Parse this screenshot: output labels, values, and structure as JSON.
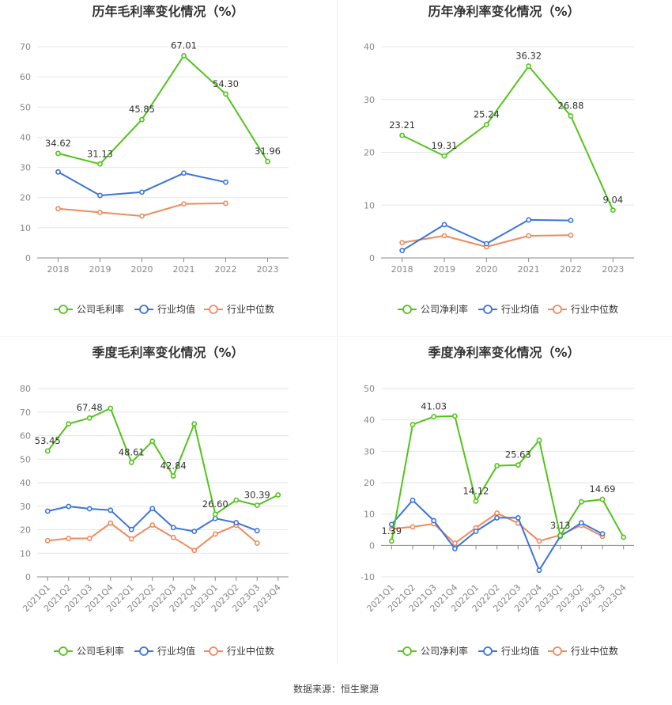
{
  "colors": {
    "company": "#52c41a",
    "avg": "#3b74db",
    "median": "#f08a5d"
  },
  "legend": [
    "公司毛利率",
    "行业均值",
    "行业中位数"
  ],
  "source": "数据来源：恒生聚源",
  "chart_data": [
    {
      "type": "line",
      "title": "历年毛利率变化情况（%）",
      "categories": [
        "2018",
        "2019",
        "2020",
        "2021",
        "2022",
        "2023"
      ],
      "ylim": [
        0,
        70
      ],
      "yticks": [
        0,
        10,
        20,
        30,
        40,
        50,
        60,
        70
      ],
      "legend": [
        "公司毛利率",
        "行业均值",
        "行业中位数"
      ],
      "series": [
        {
          "name": "公司毛利率",
          "values": [
            34.62,
            31.13,
            45.85,
            67.01,
            54.3,
            31.96
          ],
          "labels": [
            "34.62",
            "31.13",
            "45.85",
            "67.01",
            "54.30",
            "31.96"
          ]
        },
        {
          "name": "行业均值",
          "values": [
            28.5,
            20.7,
            21.8,
            28.1,
            25.1,
            null
          ]
        },
        {
          "name": "行业中位数",
          "values": [
            16.3,
            15.1,
            13.9,
            17.9,
            18.1,
            null
          ]
        }
      ]
    },
    {
      "type": "line",
      "title": "历年净利率变化情况（%）",
      "categories": [
        "2018",
        "2019",
        "2020",
        "2021",
        "2022",
        "2023"
      ],
      "ylim": [
        0,
        40
      ],
      "yticks": [
        0,
        10,
        20,
        30,
        40
      ],
      "legend": [
        "公司净利率",
        "行业均值",
        "行业中位数"
      ],
      "series": [
        {
          "name": "公司净利率",
          "values": [
            23.21,
            19.31,
            25.24,
            36.32,
            26.88,
            9.04
          ],
          "labels": [
            "23.21",
            "19.31",
            "25.24",
            "36.32",
            "26.88",
            "9.04"
          ]
        },
        {
          "name": "行业均值",
          "values": [
            1.4,
            6.3,
            2.7,
            7.2,
            7.1,
            null
          ]
        },
        {
          "name": "行业中位数",
          "values": [
            2.9,
            4.2,
            2.1,
            4.2,
            4.3,
            null
          ]
        }
      ]
    },
    {
      "type": "line",
      "title": "季度毛利率变化情况（%）",
      "categories": [
        "2021Q1",
        "2021Q2",
        "2021Q3",
        "2021Q4",
        "2022Q1",
        "2022Q2",
        "2022Q3",
        "2022Q4",
        "2023Q1",
        "2023Q2",
        "2023Q3",
        "2023Q4"
      ],
      "ylim": [
        0,
        80
      ],
      "yticks": [
        0,
        10,
        20,
        30,
        40,
        50,
        60,
        70,
        80
      ],
      "legend": [
        "公司毛利率",
        "行业均值",
        "行业中位数"
      ],
      "series": [
        {
          "name": "公司毛利率",
          "values": [
            53.45,
            65.0,
            67.48,
            71.6,
            48.61,
            57.6,
            42.84,
            65.0,
            26.6,
            32.6,
            30.39,
            34.8
          ],
          "labels": [
            "53.45",
            "",
            "67.48",
            "",
            "48.61",
            "",
            "42.84",
            "",
            "26.60",
            "",
            "30.39",
            ""
          ]
        },
        {
          "name": "行业均值",
          "values": [
            27.9,
            29.9,
            28.9,
            28.3,
            20.1,
            29.0,
            20.9,
            19.3,
            24.8,
            23.0,
            19.6,
            null
          ]
        },
        {
          "name": "行业中位数",
          "values": [
            15.4,
            16.3,
            16.3,
            22.8,
            16.1,
            22.0,
            16.7,
            11.2,
            18.2,
            21.9,
            14.3,
            null
          ]
        }
      ]
    },
    {
      "type": "line",
      "title": "季度净利率变化情况（%）",
      "categories": [
        "2021Q1",
        "2021Q2",
        "2021Q3",
        "2021Q4",
        "2022Q1",
        "2022Q2",
        "2022Q3",
        "2022Q4",
        "2023Q1",
        "2023Q2",
        "2023Q3",
        "2023Q4"
      ],
      "ylim": [
        -10,
        50
      ],
      "yticks": [
        -10,
        0,
        10,
        20,
        30,
        40,
        50
      ],
      "legend": [
        "公司净利率",
        "行业均值",
        "行业中位数"
      ],
      "series": [
        {
          "name": "公司净利率",
          "values": [
            1.39,
            38.5,
            41.03,
            41.2,
            14.12,
            25.4,
            25.63,
            33.5,
            3.13,
            13.9,
            14.69,
            2.6
          ],
          "labels": [
            "1.39",
            "",
            "41.03",
            "",
            "14.12",
            "",
            "25.63",
            "",
            "3.13",
            "",
            "14.69",
            ""
          ]
        },
        {
          "name": "行业均值",
          "values": [
            6.7,
            14.4,
            7.9,
            -1.0,
            4.5,
            8.8,
            8.8,
            -7.9,
            2.9,
            7.2,
            3.7,
            null
          ]
        },
        {
          "name": "行业中位数",
          "values": [
            5.3,
            5.9,
            6.9,
            0.7,
            5.6,
            10.3,
            7.1,
            1.4,
            3.3,
            6.4,
            2.9,
            null
          ]
        }
      ]
    }
  ]
}
